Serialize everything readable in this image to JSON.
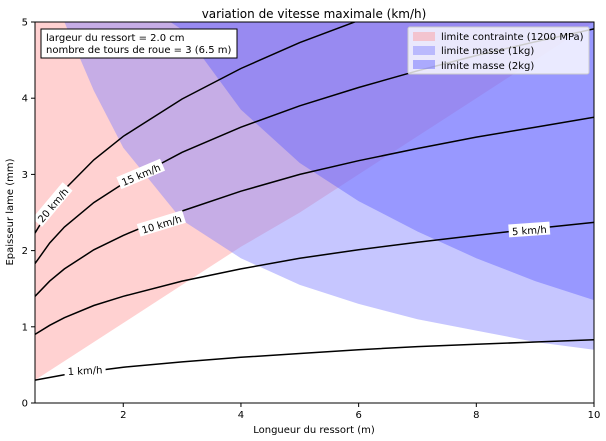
{
  "chart_data": {
    "type": "line",
    "title": "variation de vitesse maximale (km/h)",
    "xlabel": "Longueur du ressort (m)",
    "ylabel": "Epaisseur lame (mm)",
    "xlim": [
      0.5,
      10
    ],
    "ylim": [
      0,
      5
    ],
    "xticks": [
      2,
      4,
      6,
      8,
      10
    ],
    "xtick_labels": [
      "2",
      "4",
      "6",
      "8",
      "10"
    ],
    "yticks": [
      0,
      1,
      2,
      3,
      4,
      5
    ],
    "ytick_labels": [
      "0",
      "1",
      "2",
      "3",
      "4",
      "5"
    ],
    "grid": false,
    "legend_position": "top-right",
    "annotation": [
      "largeur du ressort = 2.0 cm",
      "nombre de tours de roue = 3 (6.5 m)"
    ],
    "regions": [
      {
        "name": "limite contrainte (1200 MPa)",
        "color": "#ff9999",
        "x": [
          0.5,
          1,
          2,
          3,
          4,
          5,
          6,
          7,
          8,
          9,
          10
        ],
        "lower": [
          0.3,
          0.55,
          1.05,
          1.55,
          2.05,
          2.5,
          3.0,
          3.5,
          4.0,
          4.5,
          5.0
        ],
        "upper": [
          5,
          5,
          5,
          5,
          5,
          5,
          5,
          5,
          5,
          5,
          5
        ]
      },
      {
        "name": "limite masse (1kg)",
        "color": "#8080ff",
        "x": [
          1,
          1.5,
          2,
          3,
          4,
          5,
          6,
          7,
          8,
          9,
          10
        ],
        "lower": [
          5.0,
          4.1,
          3.35,
          2.4,
          1.9,
          1.55,
          1.3,
          1.1,
          0.95,
          0.8,
          0.7
        ],
        "upper": [
          5,
          5,
          5,
          5,
          5,
          5,
          5,
          5,
          5,
          5,
          5
        ]
      },
      {
        "name": "limite masse (2kg)",
        "color": "#6060ff",
        "x": [
          2.8,
          3,
          4,
          5,
          6,
          7,
          8,
          9,
          10
        ],
        "lower": [
          5.0,
          4.9,
          3.85,
          3.15,
          2.65,
          2.25,
          1.9,
          1.6,
          1.35
        ],
        "upper": [
          5,
          5,
          5,
          5,
          5,
          5,
          5,
          5,
          5
        ]
      }
    ],
    "series": [
      {
        "name": "1 km/h",
        "x": [
          0.5,
          1,
          2,
          3,
          4,
          5,
          6,
          7,
          8,
          9,
          10
        ],
        "y": [
          0.3,
          0.37,
          0.47,
          0.54,
          0.6,
          0.65,
          0.7,
          0.74,
          0.77,
          0.8,
          0.83
        ]
      },
      {
        "name": "5 km/h",
        "x": [
          0.5,
          0.75,
          1,
          1.5,
          2,
          3,
          4,
          5,
          6,
          7,
          8,
          9,
          10
        ],
        "y": [
          0.9,
          1.02,
          1.12,
          1.28,
          1.4,
          1.6,
          1.76,
          1.9,
          2.01,
          2.11,
          2.2,
          2.29,
          2.37
        ]
      },
      {
        "name": "10 km/h",
        "x": [
          0.5,
          0.75,
          1,
          1.5,
          2,
          3,
          4,
          5,
          6,
          7,
          8,
          9,
          10
        ],
        "y": [
          1.4,
          1.6,
          1.76,
          2.01,
          2.2,
          2.52,
          2.78,
          3.0,
          3.18,
          3.34,
          3.49,
          3.62,
          3.75
        ]
      },
      {
        "name": "15 km/h",
        "x": [
          0.5,
          0.75,
          1,
          1.5,
          2,
          3,
          4,
          5,
          6,
          7,
          8,
          9,
          10
        ],
        "y": [
          1.83,
          2.1,
          2.31,
          2.63,
          2.88,
          3.29,
          3.62,
          3.9,
          4.14,
          4.36,
          4.56,
          4.74,
          4.91
        ]
      },
      {
        "name": "20 km/h",
        "x": [
          0.5,
          0.75,
          1,
          1.5,
          2,
          3,
          4,
          5,
          6,
          6.2
        ],
        "y": [
          2.23,
          2.55,
          2.8,
          3.19,
          3.5,
          3.99,
          4.39,
          4.73,
          5.02,
          5.07
        ]
      }
    ],
    "contour_labels": [
      {
        "text": "1 km/h",
        "x": 1.35,
        "y": 0.43,
        "angle": -3
      },
      {
        "text": "5 km/h",
        "x": 8.9,
        "y": 2.27,
        "angle": -4
      },
      {
        "text": "10 km/h",
        "x": 2.65,
        "y": 2.35,
        "angle": -17
      },
      {
        "text": "15 km/h",
        "x": 2.3,
        "y": 3.0,
        "angle": -23
      },
      {
        "text": "20 km/h",
        "x": 0.8,
        "y": 2.6,
        "angle": -50
      }
    ]
  }
}
